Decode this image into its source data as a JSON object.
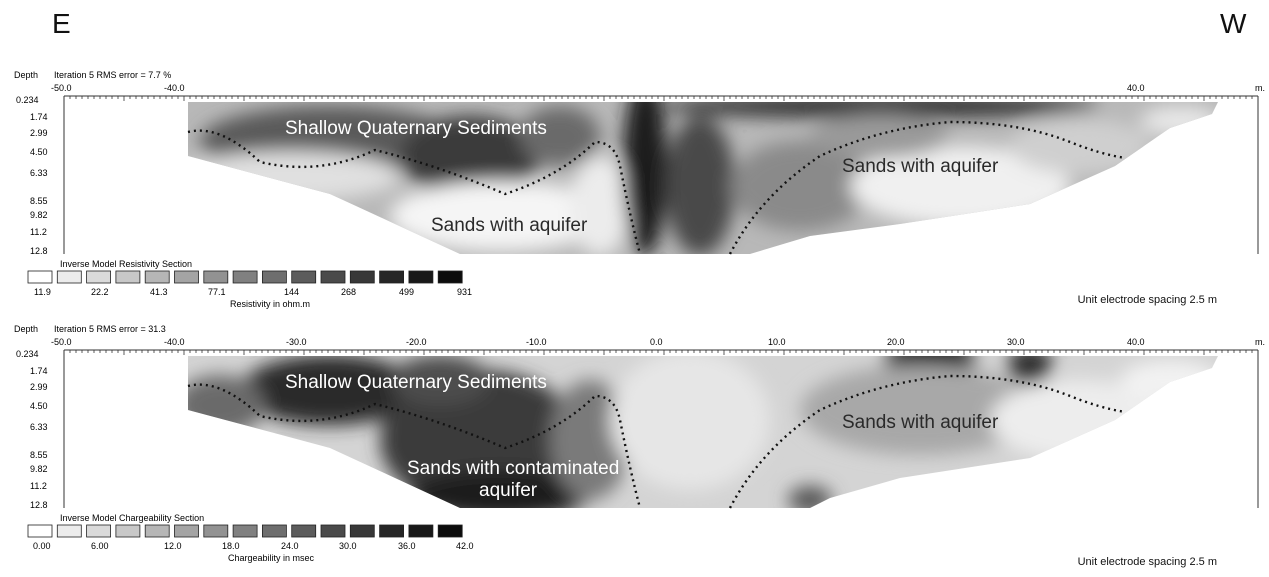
{
  "direction": {
    "left": "E",
    "right": "W"
  },
  "panels": [
    {
      "depth_label": "Depth",
      "iteration_label": "Iteration 5 RMS error = 7.7 %",
      "x_ticks": [
        "-50.0",
        "-40.0",
        "40.0"
      ],
      "x_unit": "m.",
      "depth_ticks": [
        "0.234",
        "1.74",
        "2.99",
        "4.50",
        "6.33",
        "8.55",
        "9.82",
        "11.2",
        "12.8"
      ],
      "annotations": [
        "Shallow Quaternary Sediments",
        "Sands with aquifer",
        "Sands with aquifer"
      ],
      "legend_title": "Inverse Model Resistivity Section",
      "legend_values": [
        "11.9",
        "22.2",
        "41.3",
        "77.1",
        "144",
        "268",
        "499",
        "931"
      ],
      "legend_unit": "Resistivity in ohm.m",
      "spacing": "Unit electrode spacing 2.5 m"
    },
    {
      "depth_label": "Depth",
      "iteration_label": "Iteration 5 RMS error = 31.3",
      "x_ticks": [
        "-50.0",
        "-40.0",
        "-30.0",
        "-20.0",
        "-10.0",
        "0.0",
        "10.0",
        "20.0",
        "30.0",
        "40.0"
      ],
      "x_unit": "m.",
      "depth_ticks": [
        "0.234",
        "1.74",
        "2.99",
        "4.50",
        "6.33",
        "8.55",
        "9.82",
        "11.2",
        "12.8"
      ],
      "annotations": [
        "Shallow Quaternary Sediments",
        "Sands with contaminated",
        "aquifer",
        "Sands with aquifer"
      ],
      "legend_title": "Inverse Model Chargeability Section",
      "legend_values": [
        "0.00",
        "6.00",
        "12.0",
        "18.0",
        "24.0",
        "30.0",
        "36.0",
        "42.0"
      ],
      "legend_unit": "Chargeability in msec",
      "spacing": "Unit electrode spacing 2.5 m"
    }
  ],
  "legend_colors": [
    "#ffffff",
    "#ececec",
    "#dadada",
    "#c8c8c8",
    "#b6b6b6",
    "#a4a4a4",
    "#929292",
    "#808080",
    "#6e6e6e",
    "#5c5c5c",
    "#4a4a4a",
    "#383838",
    "#262626",
    "#181818",
    "#0c0c0c"
  ]
}
